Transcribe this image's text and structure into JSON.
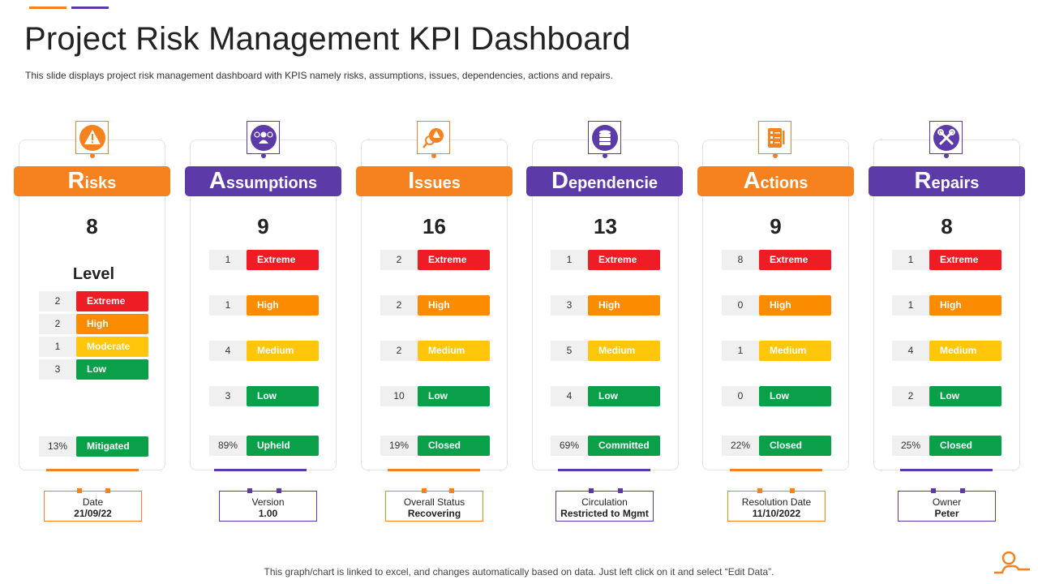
{
  "title": "Project Risk Management KPI Dashboard",
  "subtitle": "This slide displays project risk management dashboard with KPIS namely risks, assumptions, issues, dependencies, actions and repairs.",
  "colors": {
    "orange": "#f5821f",
    "purple": "#5c3ba8",
    "extreme": "#ee1c25",
    "high": "#fb8c00",
    "medium": "#ffc60b",
    "low": "#0aa04a"
  },
  "cards": [
    {
      "cap": "R",
      "rest": "isks",
      "icon": "warning-icon",
      "count": "8",
      "level_label": "Level",
      "rows": [
        {
          "n": "2",
          "label": "Extreme"
        },
        {
          "n": "2",
          "label": "High"
        },
        {
          "n": "1",
          "label": "Moderate"
        },
        {
          "n": "3",
          "label": "Low"
        }
      ],
      "status": {
        "pct": "13%",
        "label": "Mitigated"
      },
      "info": {
        "key": "Date",
        "value": "21/09/22"
      }
    },
    {
      "cap": "A",
      "rest": "ssumptions",
      "icon": "team-icon",
      "count": "9",
      "rows": [
        {
          "n": "1",
          "label": "Extreme"
        },
        {
          "n": "1",
          "label": "High"
        },
        {
          "n": "4",
          "label": "Medium"
        },
        {
          "n": "3",
          "label": "Low"
        }
      ],
      "status": {
        "pct": "89%",
        "label": "Upheld"
      },
      "info": {
        "key": "Version",
        "value": "1.00"
      }
    },
    {
      "cap": "I",
      "rest": "ssues",
      "icon": "issue-search-icon",
      "count": "16",
      "rows": [
        {
          "n": "2",
          "label": "Extreme"
        },
        {
          "n": "2",
          "label": "High"
        },
        {
          "n": "2",
          "label": "Medium"
        },
        {
          "n": "10",
          "label": "Low"
        }
      ],
      "status": {
        "pct": "19%",
        "label": "Closed"
      },
      "info": {
        "key": "Overall Status",
        "value": "Recovering"
      }
    },
    {
      "cap": "D",
      "rest": "ependencie",
      "icon": "database-icon",
      "count": "13",
      "rows": [
        {
          "n": "1",
          "label": "Extreme"
        },
        {
          "n": "3",
          "label": "High"
        },
        {
          "n": "5",
          "label": "Medium"
        },
        {
          "n": "4",
          "label": "Low"
        }
      ],
      "status": {
        "pct": "69%",
        "label": "Committed"
      },
      "info": {
        "key": "Circulation",
        "value": "Restricted to Mgmt"
      }
    },
    {
      "cap": "A",
      "rest": "ctions",
      "icon": "checklist-icon",
      "count": "9",
      "rows": [
        {
          "n": "8",
          "label": "Extreme"
        },
        {
          "n": "0",
          "label": "High"
        },
        {
          "n": "1",
          "label": "Medium"
        },
        {
          "n": "0",
          "label": "Low"
        }
      ],
      "status": {
        "pct": "22%",
        "label": "Closed"
      },
      "info": {
        "key": "Resolution Date",
        "value": "11/10/2022"
      }
    },
    {
      "cap": "R",
      "rest": "epairs",
      "icon": "tools-icon",
      "count": "8",
      "rows": [
        {
          "n": "1",
          "label": "Extreme"
        },
        {
          "n": "1",
          "label": "High"
        },
        {
          "n": "4",
          "label": "Medium"
        },
        {
          "n": "2",
          "label": "Low"
        }
      ],
      "status": {
        "pct": "25%",
        "label": "Closed"
      },
      "info": {
        "key": "Owner",
        "value": "Peter"
      }
    }
  ],
  "footer": "This graph/chart is linked to excel,  and changes automatically based on data. Just left click on it and select “Edit Data”."
}
